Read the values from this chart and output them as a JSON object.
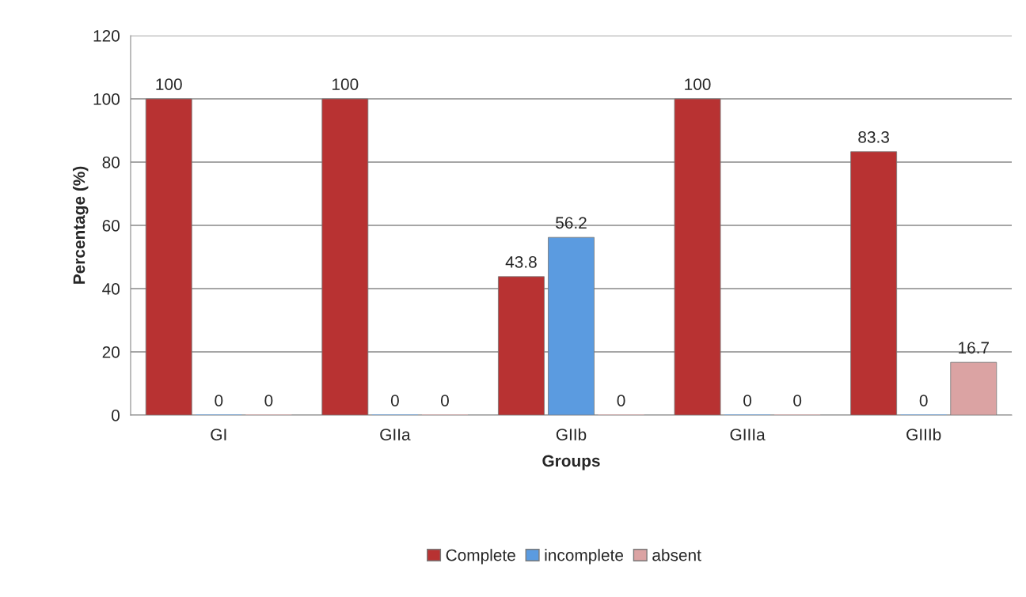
{
  "chart_data": {
    "type": "bar",
    "xlabel": "Groups",
    "ylabel": "Percentage (%)",
    "categories": [
      "GI",
      "GIIa",
      "GIIb",
      "GIIIa",
      "GIIIb"
    ],
    "series": [
      {
        "name": "Complete",
        "color": "#b83232",
        "values": [
          100,
          100,
          43.8,
          100,
          83.3
        ]
      },
      {
        "name": "incomplete",
        "color": "#5b9be0",
        "values": [
          0,
          0,
          56.2,
          0,
          0
        ]
      },
      {
        "name": "absent",
        "color": "#dba3a3",
        "values": [
          0,
          0,
          0,
          0,
          16.7
        ]
      }
    ],
    "ylim": [
      0,
      120
    ],
    "yticks": [
      0,
      20,
      40,
      60,
      80,
      100,
      120
    ],
    "grid": "y",
    "legend": "bottom",
    "data_labels": true
  }
}
